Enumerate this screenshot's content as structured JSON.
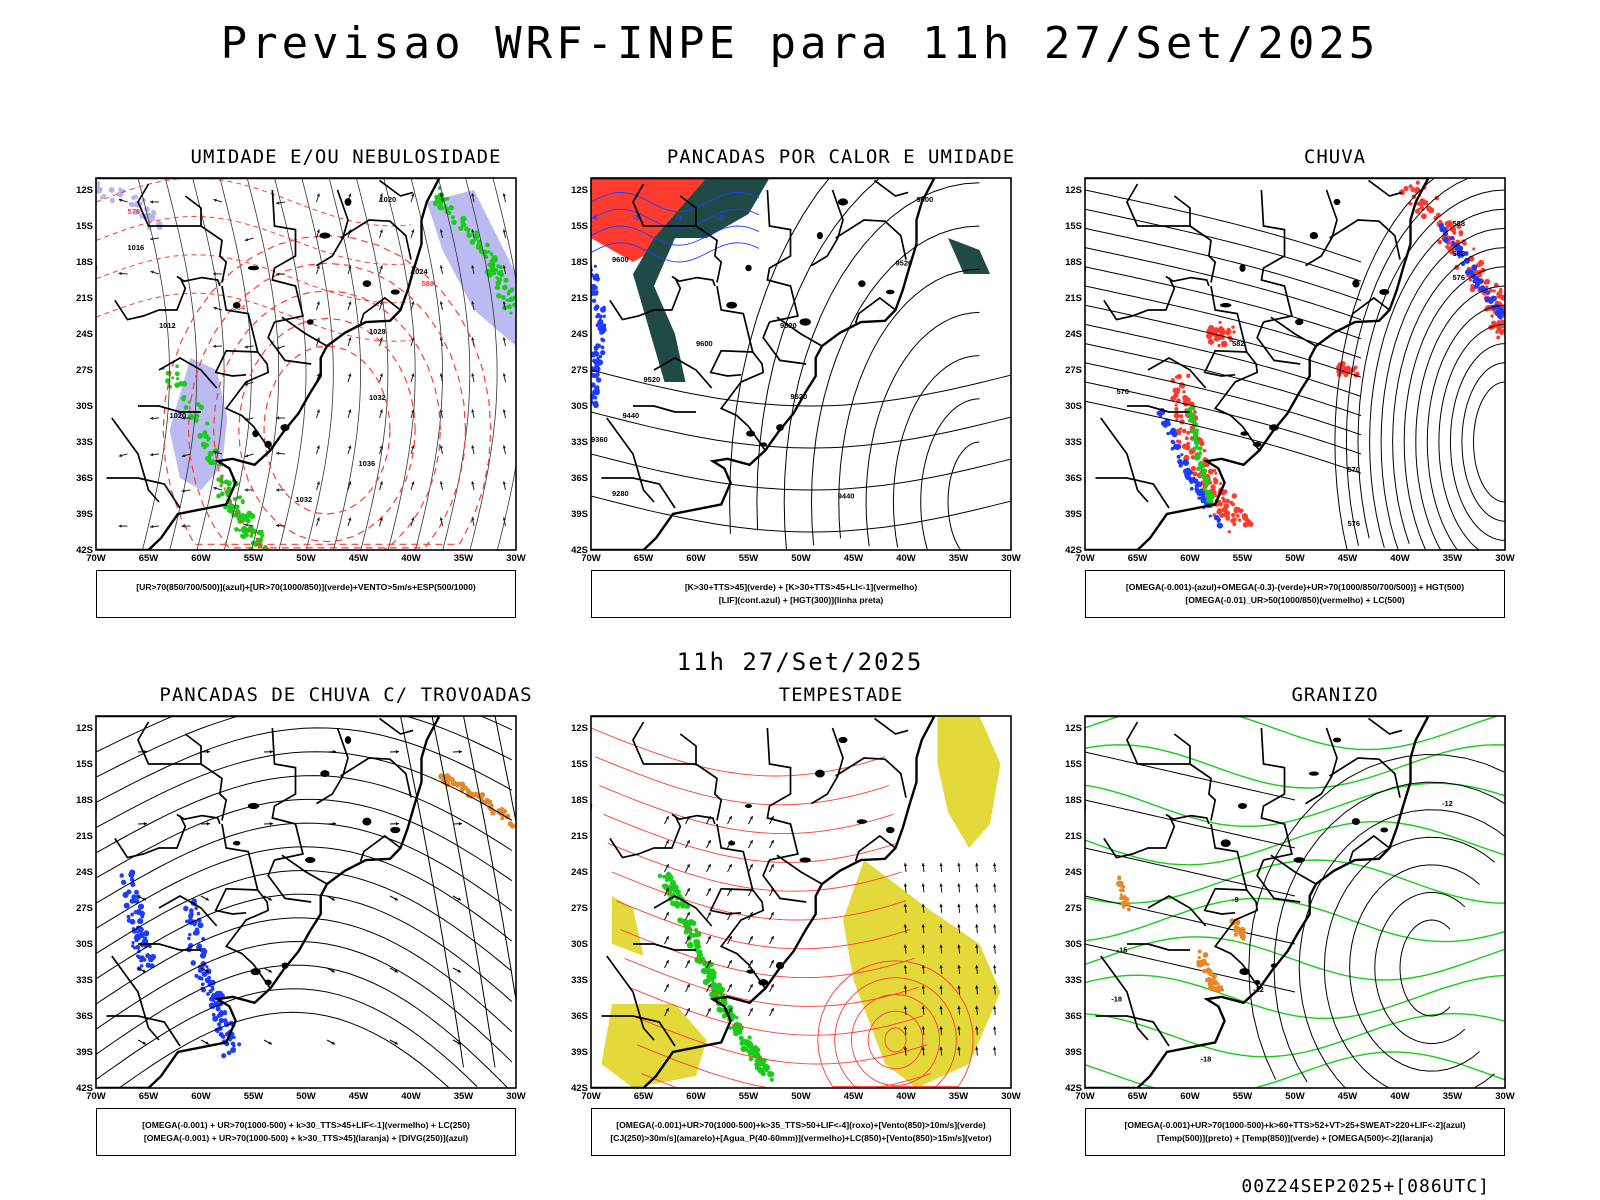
{
  "page": {
    "title": "Previsao WRF-INPE  para 11h 27/Set/2025",
    "subtitle": "11h 27/Set/2025",
    "footer": "00Z24SEP2025+[086UTC]"
  },
  "axes": {
    "lat_labels": [
      "12S",
      "15S",
      "18S",
      "21S",
      "24S",
      "27S",
      "30S",
      "33S",
      "36S",
      "39S",
      "42S"
    ],
    "lon_labels": [
      "70W",
      "65W",
      "60W",
      "55W",
      "50W",
      "45W",
      "40W",
      "35W",
      "30W"
    ]
  },
  "colors": {
    "contour": "#000000",
    "red": "#ff3b30",
    "green": "#19cc19",
    "blue": "#1e3cff",
    "lavender": "#b4b4f0",
    "darkteal": "#1f4a46",
    "yellow": "#e4d93a",
    "orange": "#e8872a",
    "lightred": "#ff6b6b"
  },
  "panels": [
    {
      "id": "umidade",
      "title": "UMIDADE E/OU NEBULOSIDADE",
      "legend": [
        "[UR>70(850/700/500)](azul)+[UR>70(1000/850)](verde)+VENTO>5m/s+ESP(500/1000)"
      ],
      "contour_labels": [
        "1020",
        "1016",
        "1012",
        "1024",
        "1028",
        "1032",
        "1036",
        "576",
        "570",
        "564",
        "582",
        "588"
      ]
    },
    {
      "id": "pancadas-calor",
      "title": "PANCADAS POR CALOR E UMIDADE",
      "legend": [
        "[K>30+TTS>45](verde) + [K>30+TTS>45+LI<-1](vermelho)",
        "[LIF](cont.azul) + [HGT(300)](linha preta)"
      ],
      "contour_labels": [
        "9600",
        "9520",
        "9440",
        "9360",
        "9280",
        "-6",
        "-5",
        "-3",
        "-2"
      ]
    },
    {
      "id": "chuva",
      "title": "CHUVA",
      "legend": [
        "[OMEGA(-0.001)-(azul)+OMEGA(-0.3)-(verde)+UR>70(1000/850/700/500)] + HGT(500)",
        "[OMEGA(-0.01)_UR>50(1000/850)(vermelho) + LC(500)"
      ],
      "contour_labels": [
        "588",
        "582",
        "576",
        "570"
      ]
    },
    {
      "id": "trovoadas",
      "title": "PANCADAS DE CHUVA C/ TROVOADAS",
      "legend": [
        "[OMEGA(-0.001) + UR>70(1000-500) + k>30_TTS>45+LIF<-1](vermelho) + LC(250)",
        "[OMEGA(-0.001) + UR>70(1000-500) + k>30_TTS>45](laranja) + [DIVG(250)](azul)"
      ],
      "contour_labels": []
    },
    {
      "id": "tempestade",
      "title": "TEMPESTADE",
      "legend": [
        "[OMEGA(-0.001)+UR>70(1000-500)+k>35_TTS>50+LIF<-4](roxo)+[Vento(850)>10m/s](verde)",
        "[CJ(250)>30m/s](amarelo)+[Agua_P(40-60mm)](vermelho)+LC(850)+[Vento(850)>15m/s](vetor)"
      ],
      "contour_labels": []
    },
    {
      "id": "granizo",
      "title": "GRANIZO",
      "legend": [
        "[OMEGA(-0.001)+UR>70(1000-500)+k>60+TTS>52+VT>25+SWEAT>220+LIF<-2](azul)",
        "[Temp(500)](preto) + [Temp(850)](verde) + [OMEGA(500)<-2](laranja)"
      ],
      "contour_labels": [
        "-15",
        "-12",
        "-9",
        "-18"
      ]
    }
  ]
}
